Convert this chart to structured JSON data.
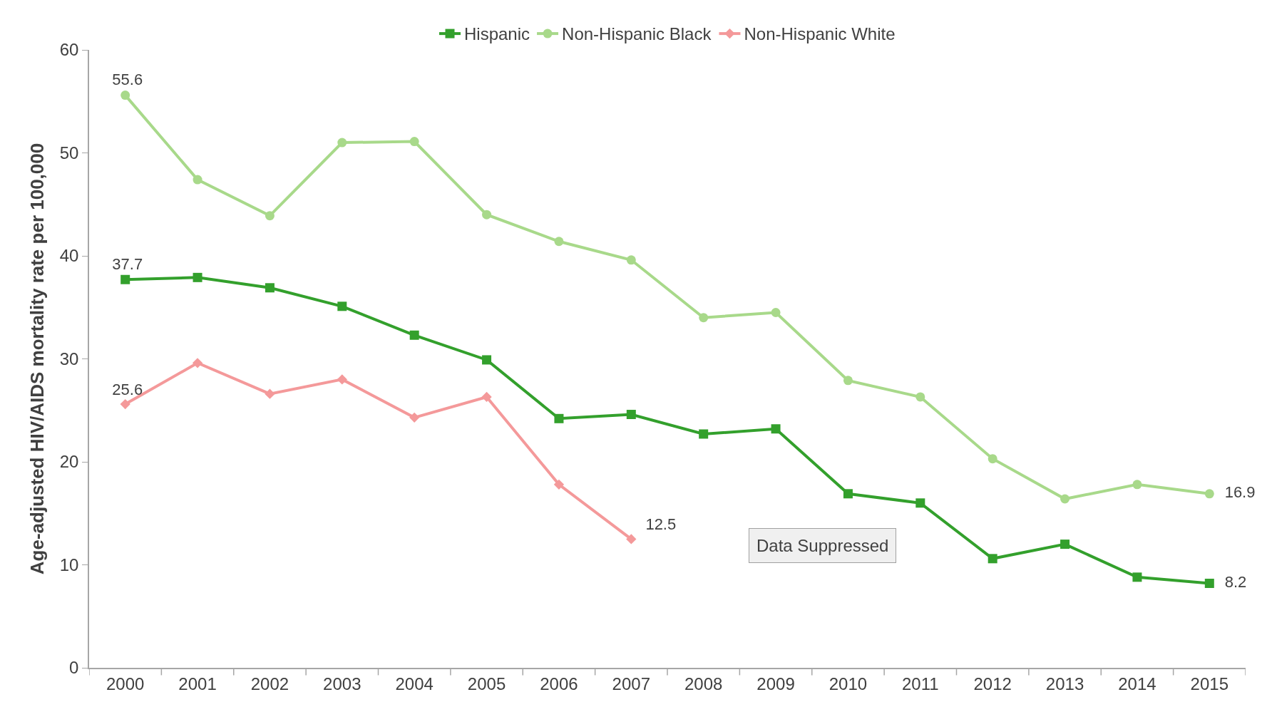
{
  "chart_data": {
    "type": "line",
    "ylabel": "Age-adjusted HIV/AIDS mortality rate per 100,000",
    "categories": [
      "2000",
      "2001",
      "2002",
      "2003",
      "2004",
      "2005",
      "2006",
      "2007",
      "2008",
      "2009",
      "2010",
      "2011",
      "2012",
      "2013",
      "2014",
      "2015"
    ],
    "series": [
      {
        "name": "Hispanic",
        "color": "#33a02c",
        "marker": "square",
        "values": [
          37.7,
          37.9,
          36.9,
          35.1,
          32.3,
          29.9,
          24.2,
          24.6,
          22.7,
          23.2,
          16.9,
          16.0,
          10.6,
          12.0,
          8.8,
          8.2
        ],
        "value_labels": [
          "37.7",
          null,
          null,
          null,
          null,
          null,
          null,
          null,
          null,
          null,
          null,
          null,
          null,
          null,
          null,
          "8.2"
        ]
      },
      {
        "name": "Non-Hispanic Black",
        "color": "#a8d98a",
        "marker": "circle",
        "values": [
          55.6,
          47.4,
          43.9,
          51.0,
          51.1,
          44.0,
          41.4,
          39.6,
          34.0,
          34.5,
          27.9,
          26.3,
          20.3,
          16.4,
          17.8,
          16.9
        ],
        "value_labels": [
          "55.6",
          null,
          null,
          null,
          null,
          null,
          null,
          null,
          null,
          null,
          null,
          null,
          null,
          null,
          null,
          "16.9"
        ]
      },
      {
        "name": "Non-Hispanic White",
        "color": "#f4999a",
        "marker": "diamond",
        "values": [
          25.6,
          29.6,
          26.6,
          28.0,
          24.3,
          26.3,
          17.8,
          12.5,
          null,
          null,
          null,
          null,
          null,
          null,
          null,
          null
        ],
        "value_labels": [
          "25.6",
          null,
          null,
          null,
          null,
          null,
          null,
          "12.5",
          null,
          null,
          null,
          null,
          null,
          null,
          null,
          null
        ]
      }
    ],
    "annotations": [
      "Data Suppressed"
    ],
    "ylim": [
      0,
      60
    ],
    "yticks": [
      0,
      10,
      20,
      30,
      40,
      50,
      60
    ],
    "legend": "top",
    "line_style": "solid"
  }
}
